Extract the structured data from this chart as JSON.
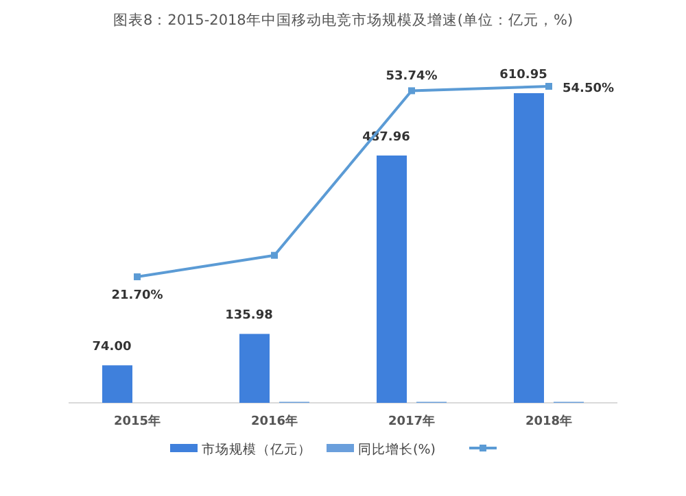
{
  "chart_data": {
    "type": "bar",
    "title": "图表8：2015-2018年中国移动电竞市场规模及增速(单位：亿元，%)",
    "categories": [
      "2015年",
      "2016年",
      "2017年",
      "2018年"
    ],
    "series": [
      {
        "name": "市场规模（亿元）",
        "color": "#3f80dc",
        "values": [
          74.0,
          135.98,
          487.96,
          610.95
        ],
        "value_labels": [
          "74.00",
          "135.98",
          "487.96",
          "610.95"
        ]
      },
      {
        "name": "同比增长(%)",
        "color": "#6a9fdc",
        "values": [
          null,
          2,
          2,
          2
        ]
      },
      {
        "type": "line",
        "axis": "y2",
        "color": "#5b9bd5",
        "values": [
          21.7,
          25.4,
          53.74,
          54.5
        ],
        "value_labels": [
          "21.70%",
          null,
          "53.74%",
          "54.50%"
        ]
      }
    ],
    "marker": "square",
    "legend": "bottom"
  }
}
